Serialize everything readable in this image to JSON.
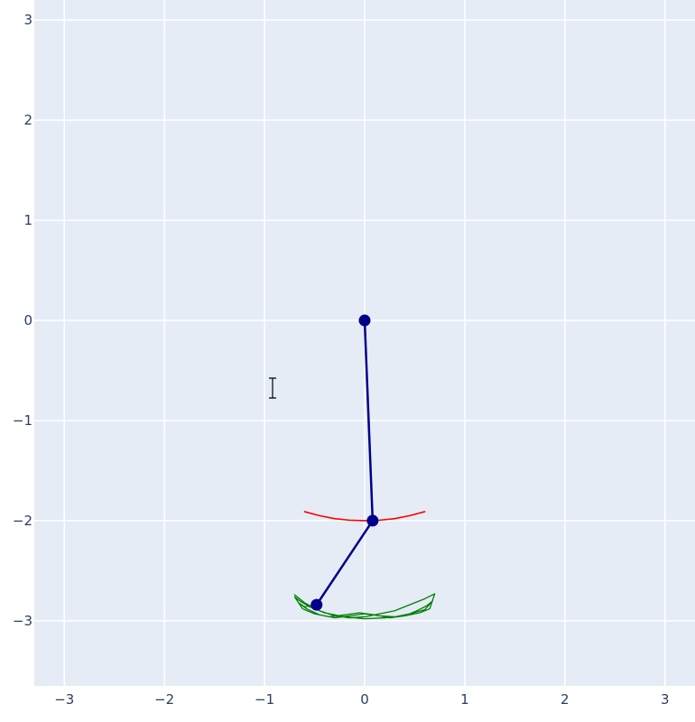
{
  "chart_data": {
    "type": "line",
    "title": "",
    "xlabel": "",
    "ylabel": "",
    "xlim": [
      -3.3,
      3.3
    ],
    "ylim": [
      -3.65,
      3.2
    ],
    "grid": true,
    "x_ticks": [
      -3,
      -2,
      -1,
      0,
      1,
      2,
      3
    ],
    "x_tick_labels": [
      "−3",
      "−2",
      "−1",
      "0",
      "1",
      "2",
      "3"
    ],
    "y_ticks": [
      3,
      2,
      1,
      0,
      -1,
      -2,
      -3
    ],
    "y_tick_labels": [
      "3",
      "2",
      "1",
      "0",
      "−1",
      "−2",
      "−3"
    ],
    "colors": {
      "plot_background": "#e5ecf6",
      "grid": "#ffffff",
      "pendulum": "#00008b",
      "first_bob_trace": "#ff0000",
      "second_bob_trace": "#008000"
    },
    "series": [
      {
        "kind": "pendulum-rod",
        "x": [
          0,
          0.08,
          -0.48
        ],
        "y": [
          0,
          -2.0,
          -2.84
        ]
      },
      {
        "kind": "first-bob-trace",
        "x": [
          -0.6,
          -0.45,
          -0.3,
          -0.15,
          0.0,
          0.15,
          0.3,
          0.45,
          0.6
        ],
        "y": [
          -1.91,
          -1.95,
          -1.98,
          -1.995,
          -2.0,
          -1.995,
          -1.98,
          -1.95,
          -1.91
        ]
      },
      {
        "kind": "second-bob-trace",
        "x": [
          -0.7,
          -0.6,
          -0.45,
          -0.3,
          -0.15,
          0.0,
          0.15,
          0.3,
          0.45,
          0.6,
          0.7,
          0.65,
          0.55,
          0.4,
          0.2,
          0.0,
          -0.2,
          -0.4,
          -0.55,
          -0.65,
          -0.7,
          -0.62,
          -0.5,
          -0.35,
          -0.2,
          -0.05,
          0.1,
          0.25,
          0.4,
          0.52,
          0.62,
          0.68,
          0.6,
          0.45,
          0.3,
          0.15,
          0.0,
          -0.15,
          -0.3,
          -0.45,
          -0.58,
          -0.66,
          -0.6,
          -0.48
        ],
        "y": [
          -2.74,
          -2.82,
          -2.9,
          -2.95,
          -2.97,
          -2.96,
          -2.93,
          -2.9,
          -2.84,
          -2.78,
          -2.73,
          -2.88,
          -2.92,
          -2.95,
          -2.97,
          -2.98,
          -2.96,
          -2.92,
          -2.86,
          -2.8,
          -2.76,
          -2.88,
          -2.93,
          -2.96,
          -2.94,
          -2.92,
          -2.94,
          -2.97,
          -2.95,
          -2.9,
          -2.85,
          -2.8,
          -2.89,
          -2.93,
          -2.96,
          -2.95,
          -2.93,
          -2.95,
          -2.97,
          -2.94,
          -2.88,
          -2.82,
          -2.86,
          -2.84
        ]
      }
    ],
    "markers": {
      "x": [
        0,
        0.08,
        -0.48
      ],
      "y": [
        0,
        -2.0,
        -2.84
      ]
    }
  }
}
